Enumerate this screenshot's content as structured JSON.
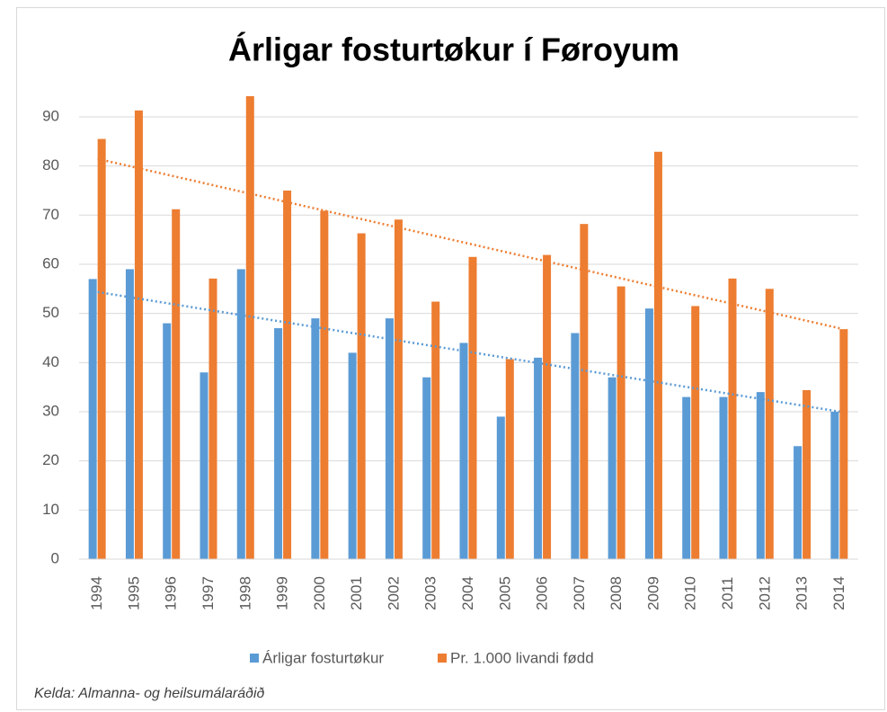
{
  "chart_data": {
    "type": "bar",
    "title": "Árligar fosturtøkur í Føroyum",
    "categories": [
      "1994",
      "1995",
      "1996",
      "1997",
      "1998",
      "1999",
      "2000",
      "2001",
      "2002",
      "2003",
      "2004",
      "2005",
      "2006",
      "2007",
      "2008",
      "2009",
      "2010",
      "2011",
      "2012",
      "2013",
      "2014"
    ],
    "series": [
      {
        "name": "Árligar fosturtøkur",
        "color": "#5b9bd5",
        "values": [
          57,
          59,
          48,
          38,
          59,
          47,
          49,
          42,
          49,
          37,
          44,
          29,
          41,
          46,
          37,
          51,
          33,
          33,
          34,
          23,
          30
        ]
      },
      {
        "name": "Pr. 1.000 livandi fødd",
        "color": "#ed7d31",
        "values": [
          85.5,
          91.3,
          71.2,
          57.1,
          94.2,
          75,
          70.9,
          66.3,
          69.1,
          52.4,
          61.5,
          40.7,
          61.9,
          68.2,
          55.5,
          82.9,
          51.5,
          57.1,
          55,
          34.4,
          46.8
        ]
      }
    ],
    "ylim": [
      0,
      95
    ],
    "yticks": [
      0,
      10,
      20,
      30,
      40,
      50,
      60,
      70,
      80,
      90
    ],
    "grid": true,
    "trendline": "linear",
    "legend": "bottom",
    "source": "Kelda: Almanna- og heilsumálaráðið"
  }
}
